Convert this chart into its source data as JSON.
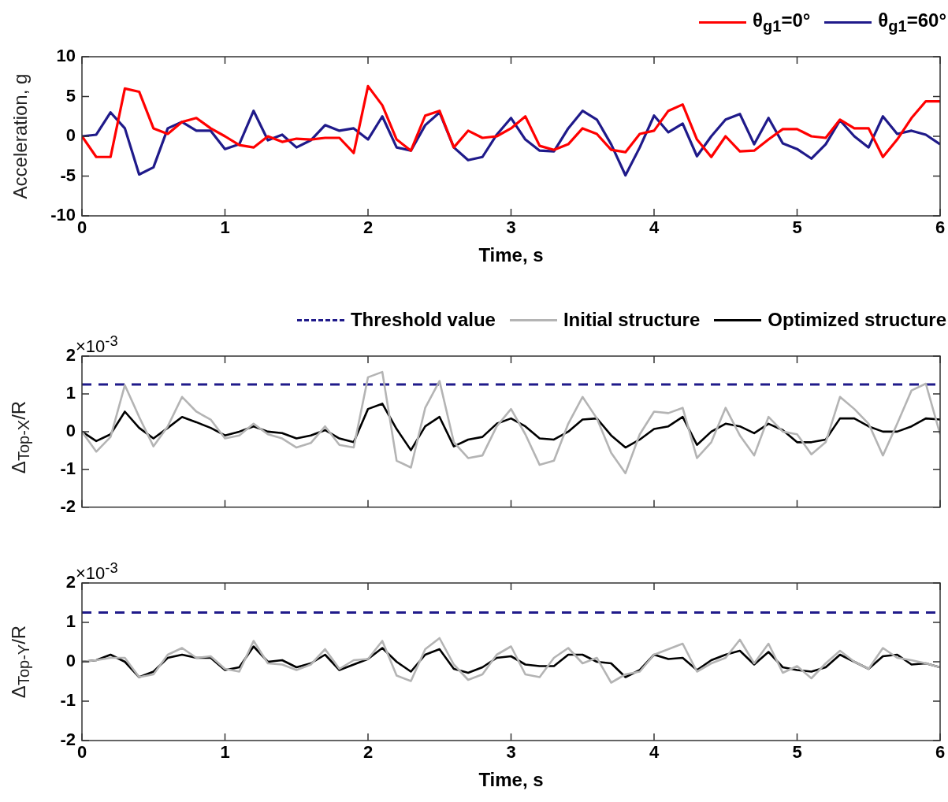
{
  "chart_data": [
    {
      "type": "line",
      "xlabel": "Time, s",
      "ylabel": "Acceleration, g",
      "legend": "top right",
      "xlim": [
        0,
        6
      ],
      "ylim": [
        -10,
        10
      ],
      "xticks": [
        0,
        1,
        2,
        3,
        4,
        5,
        6
      ],
      "yticks": [
        -10,
        -5,
        0,
        5,
        10
      ],
      "x": [
        0,
        0.1,
        0.2,
        0.3,
        0.4,
        0.5,
        0.6,
        0.7,
        0.8,
        0.9,
        1,
        1.1,
        1.2,
        1.3,
        1.4,
        1.5,
        1.6,
        1.7,
        1.8,
        1.9,
        2,
        2.1,
        2.2,
        2.3,
        2.4,
        2.5,
        2.6,
        2.7,
        2.8,
        2.9,
        3,
        3.1,
        3.2,
        3.3,
        3.4,
        3.5,
        3.6,
        3.7,
        3.8,
        3.9,
        4,
        4.1,
        4.2,
        4.3,
        4.4,
        4.5,
        4.6,
        4.7,
        4.8,
        4.9,
        5,
        5.1,
        5.2,
        5.3,
        5.4,
        5.5,
        5.6,
        5.7,
        5.8,
        5.9,
        6
      ],
      "series": [
        {
          "name": "θ$_{g1}$=0°",
          "color": "#ff0000",
          "values": [
            0,
            -2.6,
            -2.6,
            6.0,
            5.6,
            1.0,
            0.3,
            1.8,
            2.3,
            1.0,
            0,
            -1.1,
            -1.4,
            0,
            -0.7,
            -0.3,
            -0.4,
            -0.2,
            -0.2,
            -2.1,
            6.3,
            3.9,
            -0.4,
            -1.8,
            2.6,
            3.2,
            -1.4,
            0.7,
            -0.2,
            0,
            1.0,
            2.5,
            -1.2,
            -1.7,
            -1.0,
            1.0,
            0.3,
            -1.7,
            -2.0,
            0.3,
            0.7,
            3.2,
            4.0,
            -0.4,
            -2.6,
            0,
            -1.9,
            -1.8,
            -0.4,
            0.9,
            0.9,
            0,
            -0.2,
            2.1,
            1.0,
            1.0,
            -2.6,
            -0.4,
            2.3,
            4.4,
            4.4
          ]
        },
        {
          "name": "θ$_{g1}$=60°",
          "color": "#1f1a8a",
          "values": [
            0,
            0.2,
            3.0,
            1.0,
            -4.8,
            -3.9,
            1.0,
            1.8,
            0.7,
            0.7,
            -1.6,
            -1.0,
            3.2,
            -0.5,
            0.2,
            -1.4,
            -0.5,
            1.4,
            0.7,
            1.0,
            -0.4,
            2.5,
            -1.4,
            -1.8,
            1.4,
            3.0,
            -1.4,
            -3.0,
            -2.6,
            0.2,
            2.3,
            -0.4,
            -1.8,
            -1.9,
            1.0,
            3.2,
            2.1,
            -1.0,
            -4.9,
            -1.4,
            2.6,
            0.5,
            1.6,
            -2.5,
            0,
            2.1,
            2.8,
            -1.0,
            2.3,
            -0.9,
            -1.6,
            -2.8,
            -1.0,
            2.0,
            0,
            -1.4,
            2.5,
            0.3,
            0.7,
            0.2,
            -1.0
          ]
        }
      ]
    },
    {
      "type": "line",
      "ylabel": "Δ$_{Top-X}$/R",
      "legend": "top right",
      "tick_labels": "y",
      "annotations": [
        "×10$^{-3}$"
      ],
      "xlim": [
        0,
        6
      ],
      "ylim": [
        -2,
        2
      ],
      "xticks": [
        0,
        1,
        2,
        3,
        4,
        5,
        6
      ],
      "yticks": [
        -2,
        -1,
        0,
        1,
        2
      ],
      "ref_lines": [
        {
          "axis": "y",
          "value": 1.25,
          "label": "Threshold value",
          "color": "#1f1a8a",
          "line_style": "dashed"
        }
      ],
      "x": [
        0,
        0.1,
        0.2,
        0.3,
        0.4,
        0.5,
        0.6,
        0.7,
        0.8,
        0.9,
        1,
        1.1,
        1.2,
        1.3,
        1.4,
        1.5,
        1.6,
        1.7,
        1.8,
        1.9,
        2,
        2.1,
        2.2,
        2.3,
        2.4,
        2.5,
        2.6,
        2.7,
        2.8,
        2.9,
        3,
        3.1,
        3.2,
        3.3,
        3.4,
        3.5,
        3.6,
        3.7,
        3.8,
        3.9,
        4,
        4.1,
        4.2,
        4.3,
        4.4,
        4.5,
        4.6,
        4.7,
        4.8,
        4.9,
        5,
        5.1,
        5.2,
        5.3,
        5.4,
        5.5,
        5.6,
        5.7,
        5.8,
        5.9,
        6
      ],
      "series": [
        {
          "name": "Initial structure",
          "color": "#b4b4b4",
          "values": [
            0,
            -0.53,
            -0.14,
            1.23,
            0.39,
            -0.39,
            0.14,
            0.92,
            0.53,
            0.32,
            -0.18,
            -0.1,
            0.21,
            -0.07,
            -0.18,
            -0.42,
            -0.3,
            0.14,
            -0.35,
            -0.42,
            1.44,
            1.58,
            -0.77,
            -0.95,
            0.63,
            1.34,
            -0.28,
            -0.7,
            -0.63,
            0.14,
            0.6,
            -0.07,
            -0.88,
            -0.77,
            0.21,
            0.92,
            0.35,
            -0.56,
            -1.1,
            -0.07,
            0.53,
            0.49,
            0.63,
            -0.7,
            -0.28,
            0.63,
            -0.1,
            -0.63,
            0.39,
            0,
            -0.07,
            -0.6,
            -0.28,
            0.92,
            0.6,
            0.21,
            -0.63,
            0.21,
            1.09,
            1.27,
            -0.07
          ]
        },
        {
          "name": "Optimized structure",
          "color": "#000000",
          "values": [
            0,
            -0.25,
            -0.07,
            0.53,
            0.1,
            -0.18,
            0.1,
            0.39,
            0.25,
            0.1,
            -0.1,
            0,
            0.14,
            0,
            -0.04,
            -0.18,
            -0.1,
            0.04,
            -0.18,
            -0.28,
            0.6,
            0.74,
            0.07,
            -0.49,
            0.14,
            0.39,
            -0.39,
            -0.21,
            -0.14,
            0.21,
            0.35,
            0.14,
            -0.18,
            -0.21,
            0,
            0.32,
            0.35,
            -0.1,
            -0.42,
            -0.21,
            0.07,
            0.14,
            0.39,
            -0.35,
            0,
            0.21,
            0.14,
            -0.04,
            0.21,
            0.04,
            -0.28,
            -0.28,
            -0.21,
            0.35,
            0.35,
            0.14,
            0,
            0,
            0.14,
            0.35,
            0.32
          ]
        }
      ]
    },
    {
      "type": "line",
      "xlabel": "Time, s",
      "ylabel": "Δ$_{Top-Y}$/R",
      "annotations": [
        "×10$^{-3}$"
      ],
      "xlim": [
        0,
        6
      ],
      "ylim": [
        -2,
        2
      ],
      "xticks": [
        0,
        1,
        2,
        3,
        4,
        5,
        6
      ],
      "yticks": [
        -2,
        -1,
        0,
        1,
        2
      ],
      "ref_lines": [
        {
          "axis": "y",
          "value": 1.25,
          "color": "#1f1a8a",
          "line_style": "dashed"
        }
      ],
      "x": [
        0,
        0.1,
        0.2,
        0.3,
        0.4,
        0.5,
        0.6,
        0.7,
        0.8,
        0.9,
        1,
        1.1,
        1.2,
        1.3,
        1.4,
        1.5,
        1.6,
        1.7,
        1.8,
        1.9,
        2,
        2.1,
        2.2,
        2.3,
        2.4,
        2.5,
        2.6,
        2.7,
        2.8,
        2.9,
        3,
        3.1,
        3.2,
        3.3,
        3.4,
        3.5,
        3.6,
        3.7,
        3.8,
        3.9,
        4,
        4.1,
        4.2,
        4.3,
        4.4,
        4.5,
        4.6,
        4.7,
        4.8,
        4.9,
        5,
        5.1,
        5.2,
        5.3,
        5.4,
        5.5,
        5.6,
        5.7,
        5.8,
        5.9,
        6
      ],
      "series": [
        {
          "color": "#b4b4b4",
          "values": [
            0,
            0.04,
            0.1,
            0.1,
            -0.39,
            -0.32,
            0.18,
            0.35,
            0.1,
            0.14,
            -0.18,
            -0.25,
            0.53,
            -0.04,
            -0.07,
            -0.21,
            -0.07,
            0.32,
            -0.18,
            0.04,
            0.07,
            0.53,
            -0.35,
            -0.49,
            0.32,
            0.6,
            -0.07,
            -0.46,
            -0.32,
            0.18,
            0.39,
            -0.32,
            -0.39,
            0.1,
            0.35,
            -0.04,
            0.1,
            -0.53,
            -0.32,
            -0.25,
            0.18,
            0.32,
            0.46,
            -0.25,
            -0.04,
            0.1,
            0.56,
            -0.04,
            0.46,
            -0.28,
            -0.11,
            -0.42,
            -0.04,
            0.28,
            0,
            -0.18,
            0.35,
            0.1,
            0.04,
            -0.04,
            -0.14
          ]
        },
        {
          "color": "#000000",
          "values": [
            0,
            0.04,
            0.18,
            0,
            -0.39,
            -0.25,
            0.1,
            0.18,
            0.1,
            0.1,
            -0.21,
            -0.14,
            0.39,
            0,
            0.04,
            -0.14,
            -0.04,
            0.18,
            -0.21,
            -0.07,
            0.07,
            0.35,
            0,
            -0.25,
            0.18,
            0.32,
            -0.18,
            -0.28,
            -0.14,
            0.1,
            0.14,
            -0.07,
            -0.11,
            -0.11,
            0.18,
            0.18,
            0,
            -0.04,
            -0.39,
            -0.21,
            0.18,
            0.07,
            0.1,
            -0.21,
            0.04,
            0.18,
            0.28,
            -0.07,
            0.25,
            -0.14,
            -0.21,
            -0.25,
            -0.14,
            0.18,
            0,
            -0.18,
            0.14,
            0.18,
            -0.07,
            -0.04,
            -0.14
          ]
        }
      ]
    }
  ]
}
